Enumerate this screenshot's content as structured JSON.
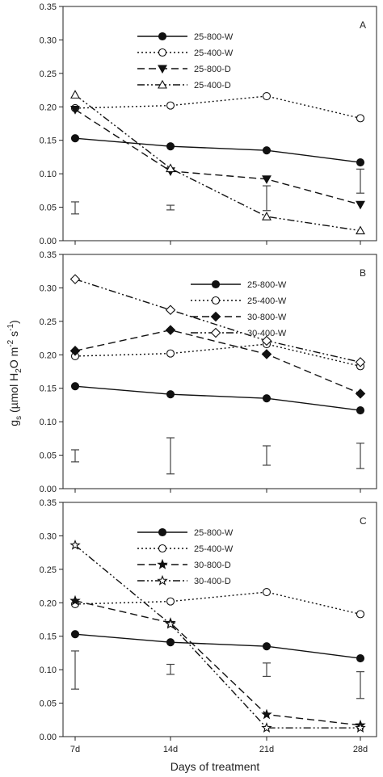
{
  "figure": {
    "ylabel_main": "g",
    "ylabel_sub": "s",
    "ylabel_rest": " (µmol H",
    "ylabel_sub2": "2",
    "ylabel_rest2": "O m",
    "ylabel_sup1": "-2",
    "ylabel_rest3": " s",
    "ylabel_sup2": "-1",
    "ylabel_close": ")",
    "xlabel": "Days of treatment"
  },
  "chart_data": [
    {
      "type": "line",
      "panel_label": "A",
      "categories": [
        "7d",
        "14d",
        "21d",
        "28d"
      ],
      "ylim": [
        0,
        0.35
      ],
      "yticks": [
        "0.00",
        "0.05",
        "0.10",
        "0.15",
        "0.20",
        "0.25",
        "0.30",
        "0.35"
      ],
      "legend_position": "top-center",
      "series": [
        {
          "name": "25-800-W",
          "values": [
            0.153,
            0.141,
            0.135,
            0.117
          ],
          "marker": "filled-circle",
          "dash": "solid"
        },
        {
          "name": "25-400-W",
          "values": [
            0.198,
            0.202,
            0.216,
            0.183
          ],
          "marker": "open-circle",
          "dash": "dotted"
        },
        {
          "name": "25-800-D",
          "values": [
            0.196,
            0.104,
            0.092,
            0.054
          ],
          "marker": "filled-triangle-down",
          "dash": "dashed"
        },
        {
          "name": "25-400-D",
          "values": [
            0.218,
            0.108,
            0.036,
            0.015
          ],
          "marker": "open-triangle-up",
          "dash": "dash-dot-dot"
        }
      ],
      "error_bars": [
        {
          "x": "7d",
          "low": 0.04,
          "high": 0.058
        },
        {
          "x": "14d",
          "low": 0.046,
          "high": 0.053
        },
        {
          "x": "21d",
          "low": 0.045,
          "high": 0.082
        },
        {
          "x": "28d",
          "low": 0.071,
          "high": 0.107
        }
      ]
    },
    {
      "type": "line",
      "panel_label": "B",
      "categories": [
        "7d",
        "14d",
        "21d",
        "28d"
      ],
      "ylim": [
        0,
        0.35
      ],
      "yticks": [
        "0.00",
        "0.05",
        "0.10",
        "0.15",
        "0.20",
        "0.25",
        "0.30",
        "0.35"
      ],
      "legend_position": "top-right",
      "series": [
        {
          "name": "25-800-W",
          "values": [
            0.153,
            0.141,
            0.135,
            0.117
          ],
          "marker": "filled-circle",
          "dash": "solid"
        },
        {
          "name": "25-400-W",
          "values": [
            0.198,
            0.202,
            0.216,
            0.183
          ],
          "marker": "open-circle",
          "dash": "dotted"
        },
        {
          "name": "30-800-W",
          "values": [
            0.206,
            0.237,
            0.201,
            0.142
          ],
          "marker": "filled-diamond",
          "dash": "dashed"
        },
        {
          "name": "30-400-W",
          "values": [
            0.313,
            0.267,
            0.221,
            0.189
          ],
          "marker": "open-diamond",
          "dash": "dash-dot-dot"
        }
      ],
      "error_bars": [
        {
          "x": "7d",
          "low": 0.04,
          "high": 0.058
        },
        {
          "x": "14d",
          "low": 0.022,
          "high": 0.076
        },
        {
          "x": "21d",
          "low": 0.035,
          "high": 0.064
        },
        {
          "x": "28d",
          "low": 0.03,
          "high": 0.068
        }
      ]
    },
    {
      "type": "line",
      "panel_label": "C",
      "categories": [
        "7d",
        "14d",
        "21d",
        "28d"
      ],
      "ylim": [
        0,
        0.35
      ],
      "yticks": [
        "0.00",
        "0.05",
        "0.10",
        "0.15",
        "0.20",
        "0.25",
        "0.30",
        "0.35"
      ],
      "legend_position": "top-center",
      "series": [
        {
          "name": "25-800-W",
          "values": [
            0.153,
            0.141,
            0.135,
            0.117
          ],
          "marker": "filled-circle",
          "dash": "solid"
        },
        {
          "name": "25-400-W",
          "values": [
            0.198,
            0.202,
            0.216,
            0.183
          ],
          "marker": "open-circle",
          "dash": "dotted"
        },
        {
          "name": "30-800-D",
          "values": [
            0.203,
            0.17,
            0.033,
            0.017
          ],
          "marker": "filled-star",
          "dash": "dashed"
        },
        {
          "name": "30-400-D",
          "values": [
            0.286,
            0.168,
            0.013,
            0.013
          ],
          "marker": "open-star",
          "dash": "dash-dot-dot"
        }
      ],
      "error_bars": [
        {
          "x": "7d",
          "low": 0.071,
          "high": 0.128
        },
        {
          "x": "14d",
          "low": 0.093,
          "high": 0.108
        },
        {
          "x": "21d",
          "low": 0.09,
          "high": 0.11
        },
        {
          "x": "28d",
          "low": 0.057,
          "high": 0.097
        }
      ]
    }
  ]
}
